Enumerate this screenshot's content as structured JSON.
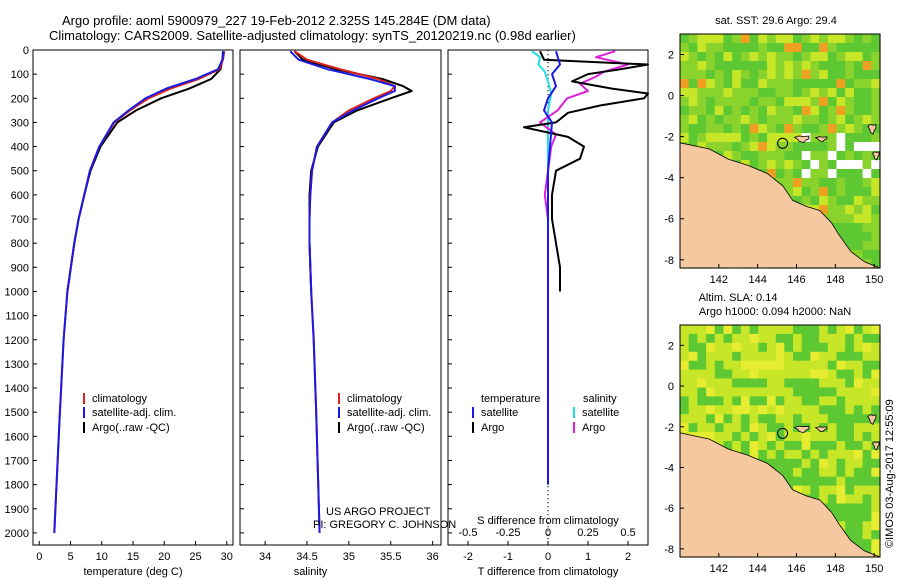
{
  "header": {
    "title_line1": "Argo profile: aoml 5900979_227 19-Feb-2012 2.325S 145.284E (DM data)",
    "title_line2": "Climatology: CARS2009. Satellite-adjusted climatology: synTS_20120219.nc (0.98d earlier)"
  },
  "footer": {
    "credit_line1": "US ARGO PROJECT",
    "credit_line2": "PI: GREGORY C. JOHNSON",
    "timestamp": "©IMOS 03-Aug-2017 12:55:09"
  },
  "colors": {
    "climatology": "#e0201a",
    "satellite": "#1a1ae6",
    "argo": "#000000",
    "salinity_satellite": "#22e0e8",
    "salinity_argo": "#e020d8",
    "land": "#f5c8a0",
    "ocean_low": "#5ec832",
    "ocean_mid": "#c8e628",
    "ocean_high": "#f0a020"
  },
  "chart_data": [
    {
      "type": "line",
      "id": "temperature",
      "xlabel": "temperature (deg C)",
      "xlim": [
        -1,
        31
      ],
      "ylim": [
        0,
        2050
      ],
      "xticks": [
        0,
        5,
        10,
        15,
        20,
        25,
        30
      ],
      "yticks": [
        0,
        100,
        200,
        300,
        400,
        500,
        600,
        700,
        800,
        900,
        1000,
        1100,
        1200,
        1300,
        1400,
        1500,
        1600,
        1700,
        1800,
        1900,
        2000
      ],
      "legend": [
        "climatology",
        "satellite-adj. clim.",
        "Argo(..raw -QC)"
      ],
      "series": [
        {
          "name": "climatology",
          "depth": [
            5,
            40,
            80,
            120,
            160,
            200,
            250,
            300,
            400,
            500,
            600,
            700,
            800,
            1000,
            1200,
            1500,
            2000
          ],
          "values": [
            29.6,
            29.4,
            28.8,
            25.5,
            21,
            17.5,
            14.5,
            12,
            9.6,
            8.1,
            7.2,
            6.3,
            5.6,
            4.5,
            3.9,
            3.3,
            2.4
          ]
        },
        {
          "name": "satellite-adj. clim.",
          "depth": [
            5,
            40,
            80,
            120,
            160,
            200,
            250,
            300,
            400,
            500,
            600,
            700,
            800,
            1000,
            1200,
            1500,
            2000
          ],
          "values": [
            29.5,
            29.3,
            28.6,
            25,
            20.3,
            17,
            14.3,
            11.9,
            9.6,
            8.1,
            7.2,
            6.3,
            5.6,
            4.5,
            3.9,
            3.3,
            2.4
          ]
        },
        {
          "name": "Argo(..raw -QC)",
          "depth": [
            5,
            40,
            80,
            120,
            160,
            200,
            250,
            300,
            400,
            500,
            600,
            700,
            800,
            1000
          ],
          "values": [
            29.4,
            29.3,
            29,
            27.5,
            24,
            19.5,
            15.5,
            12.5,
            9.8,
            8.2,
            7.2,
            6.3,
            5.6,
            4.5
          ]
        }
      ]
    },
    {
      "type": "line",
      "id": "salinity",
      "xlabel": "salinity",
      "xlim": [
        33.7,
        36.1
      ],
      "ylim": [
        0,
        2050
      ],
      "xticks": [
        34,
        34.5,
        35,
        35.5,
        36
      ],
      "legend": [
        "climatology",
        "satellite-adj. clim.",
        "Argo(..raw -QC)"
      ],
      "series": [
        {
          "name": "climatology",
          "depth": [
            5,
            40,
            80,
            120,
            150,
            170,
            200,
            250,
            300,
            400,
            500,
            600,
            700,
            800,
            1000,
            1200,
            1500,
            2000
          ],
          "values": [
            34.35,
            34.5,
            34.9,
            35.35,
            35.55,
            35.5,
            35.3,
            35.0,
            34.8,
            34.62,
            34.56,
            34.54,
            34.53,
            34.53,
            34.55,
            34.58,
            34.61,
            34.65
          ]
        },
        {
          "name": "satellite-adj. clim.",
          "depth": [
            5,
            40,
            80,
            120,
            150,
            170,
            200,
            250,
            300,
            400,
            500,
            600,
            700,
            800,
            1000,
            1200,
            1500,
            2000
          ],
          "values": [
            34.3,
            34.4,
            34.75,
            35.25,
            35.55,
            35.55,
            35.35,
            35.05,
            34.8,
            34.62,
            34.56,
            34.54,
            34.53,
            34.53,
            34.55,
            34.58,
            34.61,
            34.65
          ]
        },
        {
          "name": "Argo(..raw -QC)",
          "depth": [
            5,
            40,
            80,
            120,
            150,
            170,
            200,
            250,
            300,
            400,
            500,
            600,
            700,
            800,
            1000
          ],
          "values": [
            34.35,
            34.45,
            34.85,
            35.4,
            35.65,
            35.75,
            35.5,
            35.1,
            34.82,
            34.63,
            34.55,
            34.53,
            34.53,
            34.53,
            34.55
          ]
        }
      ]
    },
    {
      "type": "line",
      "id": "difference",
      "xlabel": "T difference from climatology",
      "xlabel_top": "S difference from climatology",
      "xlim": [
        -2.5,
        2.5
      ],
      "xticks": [
        -2,
        -1,
        0,
        1,
        2
      ],
      "xticks_s": [
        -0.5,
        -0.25,
        0,
        0.25,
        0.5
      ],
      "xticklabels_s": [
        "-0.5",
        "-0.25",
        "0",
        "0.25",
        "0.5"
      ],
      "legend_temperature_title": "temperature",
      "legend_salinity_title": "salinity",
      "legend_labels": [
        "satellite",
        "Argo",
        "satellite",
        "Argo"
      ],
      "series": [
        {
          "name": "T satellite",
          "depth": [
            5,
            60,
            100,
            150,
            200,
            250,
            300,
            400,
            500,
            600,
            800,
            1000,
            1200,
            1500,
            1800
          ],
          "values": [
            0.2,
            0.3,
            0.1,
            0.2,
            0,
            -0.1,
            0.1,
            0.05,
            0,
            0,
            0,
            0,
            0,
            0,
            0
          ]
        },
        {
          "name": "T Argo",
          "depth": [
            5,
            40,
            60,
            80,
            100,
            130,
            160,
            180,
            200,
            230,
            260,
            300,
            320,
            360,
            400,
            450,
            500,
            600,
            700,
            800,
            900,
            1000
          ],
          "values": [
            -0.2,
            -0.1,
            2.5,
            1.8,
            1.0,
            0.6,
            1.6,
            2.8,
            2.4,
            1.3,
            0.5,
            0.2,
            -0.6,
            0.5,
            0.9,
            0.8,
            0.2,
            0.1,
            0.1,
            0.2,
            0.3,
            0.3
          ]
        },
        {
          "name": "S satellite",
          "depth": [
            5,
            30,
            60,
            90,
            130,
            180,
            250,
            300,
            400,
            500,
            600,
            800,
            1000,
            1200,
            1500,
            1800
          ],
          "values": [
            -0.1,
            -0.05,
            -0.06,
            -0.02,
            0,
            0.02,
            0.0,
            0.0,
            0.0,
            0.0,
            0.0,
            0.0,
            0.0,
            0.0,
            0.0,
            0.0
          ]
        },
        {
          "name": "S Argo",
          "depth": [
            5,
            30,
            60,
            90,
            110,
            140,
            170,
            200,
            250,
            300,
            350,
            400,
            500,
            600,
            650,
            700,
            800,
            1000
          ],
          "values": [
            0.42,
            0.3,
            0.5,
            0.35,
            0.3,
            0.2,
            0.25,
            0.12,
            0.06,
            -0.05,
            0.05,
            0.02,
            0.0,
            -0.02,
            -0.01,
            0.0,
            0.0,
            0.0
          ]
        }
      ]
    },
    {
      "type": "heatmap",
      "id": "sst_map",
      "title": "sat. SST: 29.6  Argo: 29.4",
      "xlim": [
        140,
        150.3
      ],
      "ylim": [
        -8.4,
        3
      ],
      "xticks": [
        142,
        144,
        146,
        148,
        150
      ],
      "yticks": [
        2,
        0,
        -2,
        -4,
        -6,
        -8
      ],
      "float_position": {
        "lon": 145.284,
        "lat": -2.325
      }
    },
    {
      "type": "heatmap",
      "id": "sla_map",
      "title_line1": "Altim. SLA: 0.14",
      "title_line2": "Argo h1000: 0.094  h2000: NaN",
      "xlim": [
        140,
        150.3
      ],
      "ylim": [
        -8.4,
        3
      ],
      "xticks": [
        142,
        144,
        146,
        148,
        150
      ],
      "yticks": [
        2,
        0,
        -2,
        -4,
        -6,
        -8
      ],
      "float_position": {
        "lon": 145.284,
        "lat": -2.325
      }
    }
  ]
}
